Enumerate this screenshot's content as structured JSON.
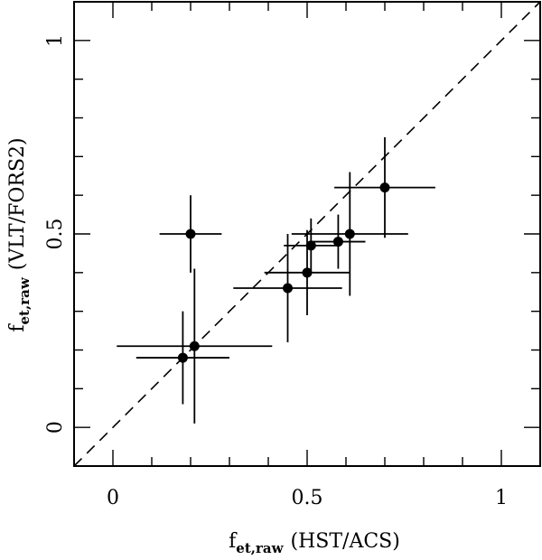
{
  "chart_data": {
    "type": "scatter",
    "title": "",
    "xlabel_main": "f",
    "xlabel_sub": "et,raw",
    "xlabel_rest": "(HST/ACS)",
    "ylabel_main": "f",
    "ylabel_sub": "et,raw",
    "ylabel_rest": "(VLT/FORS2)",
    "xlim": [
      -0.1,
      1.1
    ],
    "ylim": [
      -0.1,
      1.1
    ],
    "x_ticks": [
      {
        "value": 0,
        "label": "0"
      },
      {
        "value": 0.5,
        "label": "0.5"
      },
      {
        "value": 1,
        "label": "1"
      }
    ],
    "y_ticks": [
      {
        "value": 0,
        "label": "0"
      },
      {
        "value": 0.5,
        "label": "0.5"
      },
      {
        "value": 1,
        "label": "1"
      }
    ],
    "minor_tick_step": 0.1,
    "reference_line": {
      "style": "dashed",
      "slope": 1,
      "intercept": 0
    },
    "grid": false,
    "points": [
      {
        "x": 0.18,
        "y": 0.18,
        "xerr_low": 0.12,
        "xerr_high": 0.12,
        "yerr_low": 0.12,
        "yerr_high": 0.12
      },
      {
        "x": 0.21,
        "y": 0.21,
        "xerr_low": 0.2,
        "xerr_high": 0.2,
        "yerr_low": 0.2,
        "yerr_high": 0.2
      },
      {
        "x": 0.2,
        "y": 0.5,
        "xerr_low": 0.08,
        "xerr_high": 0.08,
        "yerr_low": 0.1,
        "yerr_high": 0.1
      },
      {
        "x": 0.45,
        "y": 0.36,
        "xerr_low": 0.14,
        "xerr_high": 0.14,
        "yerr_low": 0.14,
        "yerr_high": 0.14
      },
      {
        "x": 0.5,
        "y": 0.4,
        "xerr_low": 0.11,
        "xerr_high": 0.11,
        "yerr_low": 0.11,
        "yerr_high": 0.11
      },
      {
        "x": 0.51,
        "y": 0.47,
        "xerr_low": 0.07,
        "xerr_high": 0.07,
        "yerr_low": 0.07,
        "yerr_high": 0.07
      },
      {
        "x": 0.58,
        "y": 0.48,
        "xerr_low": 0.07,
        "xerr_high": 0.07,
        "yerr_low": 0.07,
        "yerr_high": 0.07
      },
      {
        "x": 0.61,
        "y": 0.5,
        "xerr_low": 0.15,
        "xerr_high": 0.15,
        "yerr_low": 0.16,
        "yerr_high": 0.16
      },
      {
        "x": 0.7,
        "y": 0.62,
        "xerr_low": 0.13,
        "xerr_high": 0.13,
        "yerr_low": 0.13,
        "yerr_high": 0.13
      }
    ],
    "colors": {
      "marker": "#000000",
      "line": "#000000",
      "background": "#ffffff"
    }
  }
}
